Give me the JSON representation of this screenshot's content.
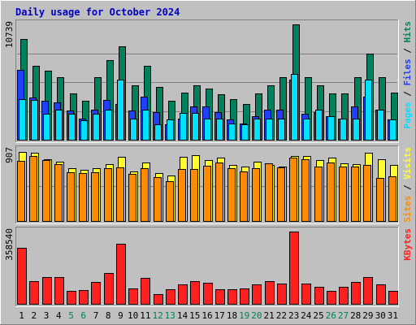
{
  "chart_data": {
    "type": "bar",
    "title": "Daily usage for October 2024",
    "categories": [
      "1",
      "2",
      "3",
      "4",
      "5",
      "6",
      "7",
      "8",
      "9",
      "10",
      "11",
      "12",
      "13",
      "14",
      "15",
      "16",
      "17",
      "18",
      "19",
      "20",
      "21",
      "22",
      "23",
      "24",
      "25",
      "26",
      "27",
      "28",
      "29",
      "30",
      "31"
    ],
    "weekend_days": [
      "5",
      "6",
      "12",
      "13",
      "19",
      "20",
      "26",
      "27"
    ],
    "panels": [
      {
        "id": "hits",
        "ymax_label": "10739",
        "ymax": 10739,
        "legend": [
          {
            "label": "Pages",
            "color": "#00e0ff"
          },
          {
            "label": "Files",
            "color": "#2040ff"
          },
          {
            "label": "Hits",
            "color": "#00805c"
          }
        ],
        "series": [
          {
            "name": "Hits",
            "color": "#00805c",
            "values": [
              9400,
              6900,
              6400,
              5800,
              4300,
              3600,
              5800,
              7400,
              8700,
              5100,
              6900,
              4900,
              3600,
              4400,
              5100,
              4800,
              4200,
              3800,
              3300,
              4300,
              5100,
              5800,
              10739,
              5800,
              5100,
              4300,
              4300,
              5800,
              8000,
              5800,
              4400
            ]
          },
          {
            "name": "Files",
            "color": "#2040ff",
            "values": [
              6500,
              3900,
              3600,
              3500,
              2700,
              2000,
              2800,
              3700,
              3300,
              2700,
              4000,
              2600,
              1400,
              2000,
              3100,
              3100,
              2600,
              1900,
              1500,
              2200,
              2800,
              2800,
              5600,
              2400,
              2600,
              2200,
              2000,
              3100,
              4000,
              2800,
              1900
            ]
          },
          {
            "name": "Pages",
            "color": "#00e0ff",
            "values": [
              3800,
              3700,
              2400,
              2800,
              2400,
              1800,
              2400,
              2800,
              5600,
              2000,
              2800,
              1400,
              1900,
              2500,
              2500,
              2000,
              2000,
              1500,
              1400,
              2000,
              2000,
              2000,
              6100,
              2000,
              2800,
              2200,
              2000,
              2000,
              5600,
              2800,
              1900
            ]
          }
        ]
      },
      {
        "id": "visits",
        "ymax_label": "907",
        "ymax": 907,
        "legend": [
          {
            "label": "Sites",
            "color": "#ff8c00"
          },
          {
            "label": "Visits",
            "color": "#ffff30"
          }
        ],
        "series": [
          {
            "name": "Visits",
            "color": "#ffff30",
            "values": [
              890,
              880,
              790,
              760,
              680,
              660,
              680,
              730,
              820,
              640,
              750,
              620,
              580,
              820,
              840,
              780,
              810,
              720,
              700,
              760,
              720,
              700,
              830,
              830,
              780,
              810,
              740,
              730,
              880,
              790,
              720
            ]
          },
          {
            "name": "Sites",
            "color": "#ff8c00",
            "values": [
              770,
              830,
              780,
              730,
              630,
              610,
              630,
              680,
              690,
              600,
              680,
              560,
              510,
              670,
              670,
              710,
              750,
              680,
              640,
              680,
              740,
              690,
              810,
              790,
              700,
              750,
              700,
              700,
              720,
              550,
              570
            ]
          }
        ]
      },
      {
        "id": "kbytes",
        "ymax_label": "358540",
        "ymax": 358540,
        "legend": [
          {
            "label": "KBytes",
            "color": "#ff2020"
          }
        ],
        "series": [
          {
            "name": "KBytes",
            "color": "#ff2020",
            "values": [
              278000,
              112000,
              133000,
              133000,
              63000,
              68000,
              108000,
              152000,
              298000,
              77000,
              128000,
              48000,
              73000,
              98000,
              113000,
              103000,
              73000,
              73000,
              78000,
              98000,
              112000,
              101000,
              358540,
              101000,
              83000,
              63000,
              83000,
              110000,
              133000,
              98000,
              63000
            ]
          }
        ]
      }
    ]
  }
}
